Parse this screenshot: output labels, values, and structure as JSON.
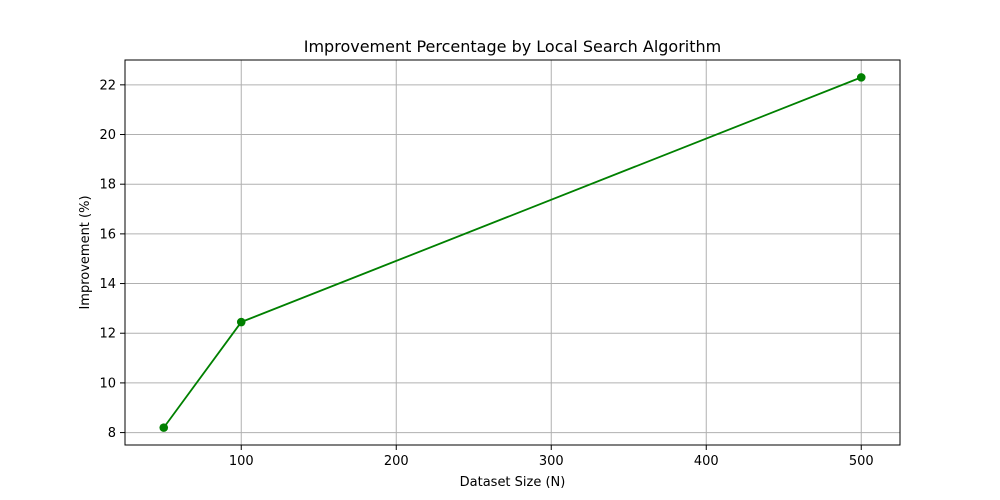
{
  "chart_data": {
    "type": "line",
    "title": "Improvement Percentage by Local Search Algorithm",
    "xlabel": "Dataset Size (N)",
    "ylabel": "Improvement (%)",
    "xlim": [
      25,
      525
    ],
    "ylim": [
      7.5,
      23.0
    ],
    "xticks": [
      100,
      200,
      300,
      400,
      500
    ],
    "yticks": [
      8,
      10,
      12,
      14,
      16,
      18,
      20,
      22
    ],
    "grid": true,
    "series": [
      {
        "color": "#008000",
        "marker": "circle",
        "x": [
          50,
          100,
          500
        ],
        "y": [
          8.2,
          12.45,
          22.3
        ]
      }
    ]
  }
}
